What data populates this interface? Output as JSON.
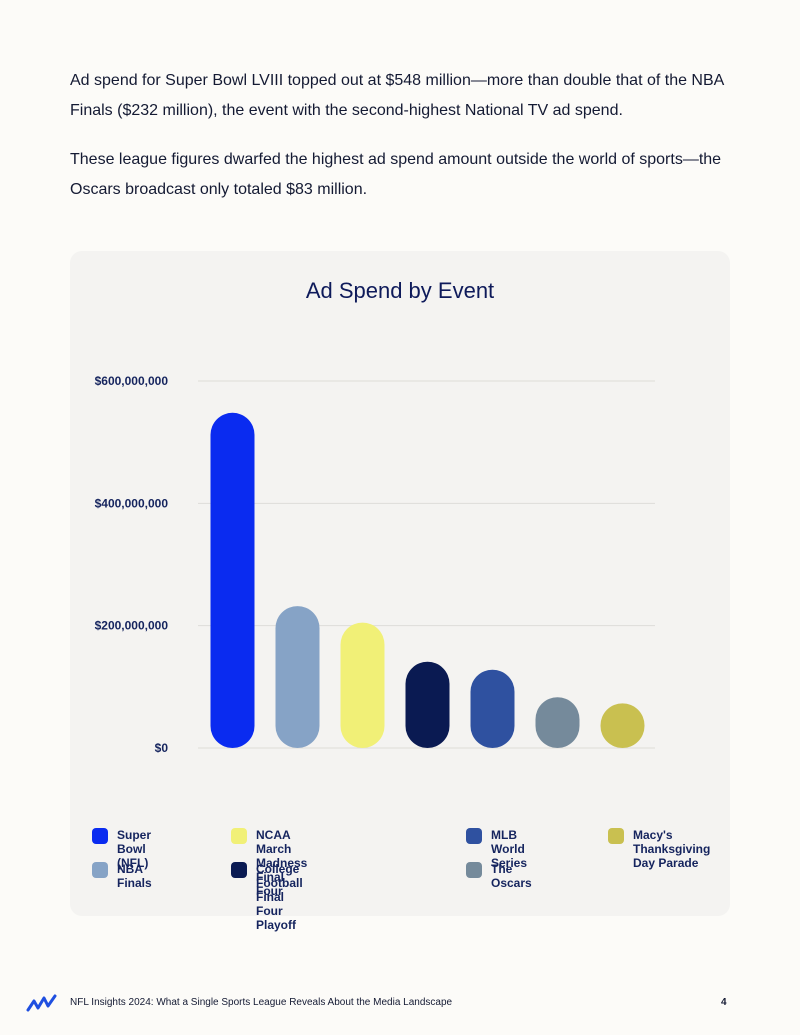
{
  "intro": {
    "paragraph1": "Ad spend for Super Bowl LVIII topped out at $548 million—more than double that of the NBA Finals ($232 million), the event with the second-highest National TV ad spend.",
    "paragraph2": "These league figures dwarfed the highest ad spend amount outside the world of sports—the Oscars broadcast only totaled $83 million."
  },
  "chart_data": {
    "type": "bar",
    "title": "Ad Spend by Event",
    "xlabel": "",
    "ylabel": "",
    "ylim": [
      0,
      600000000
    ],
    "yticks": [
      {
        "value": 0,
        "label": "$0"
      },
      {
        "value": 200000000,
        "label": "$200,000,000"
      },
      {
        "value": 400000000,
        "label": "$400,000,000"
      },
      {
        "value": 600000000,
        "label": "$600,000,000"
      }
    ],
    "grid": true,
    "legend_position": "bottom",
    "categories": [
      "Super Bowl (NFL)",
      "NBA Finals",
      "NCAA March Madness Final Four",
      "College Football Final Four Playoff",
      "MLB World Series",
      "The Oscars",
      "Macy's Thanksgiving Day Parade"
    ],
    "values": [
      548000000,
      232000000,
      205000000,
      141000000,
      128000000,
      83000000,
      73000000
    ],
    "colors": [
      "#0a2bf0",
      "#86a3c6",
      "#f1f077",
      "#0a1a52",
      "#2f51a0",
      "#758a9b",
      "#c9c050"
    ]
  },
  "legend": [
    {
      "label": "Super Bowl (NFL)",
      "color": "#0a2bf0"
    },
    {
      "label": "NBA Finals",
      "color": "#86a3c6"
    },
    {
      "label": "NCAA March Madness Final Four",
      "color": "#f1f077"
    },
    {
      "label": "College Football Final Four Playoff",
      "color": "#0a1a52"
    },
    {
      "label": "MLB World Series",
      "color": "#2f51a0"
    },
    {
      "label": "The Oscars",
      "color": "#758a9b"
    },
    {
      "label": "Macy's\nThanksgiving\nDay Parade",
      "color": "#c9c050"
    }
  ],
  "footer": {
    "text": "NFL Insights 2024: What a Single Sports League Reveals About the Media Landscape",
    "page": "4",
    "logo_icon": "wave-logo-icon",
    "logo_color": "#1f4fe0"
  }
}
